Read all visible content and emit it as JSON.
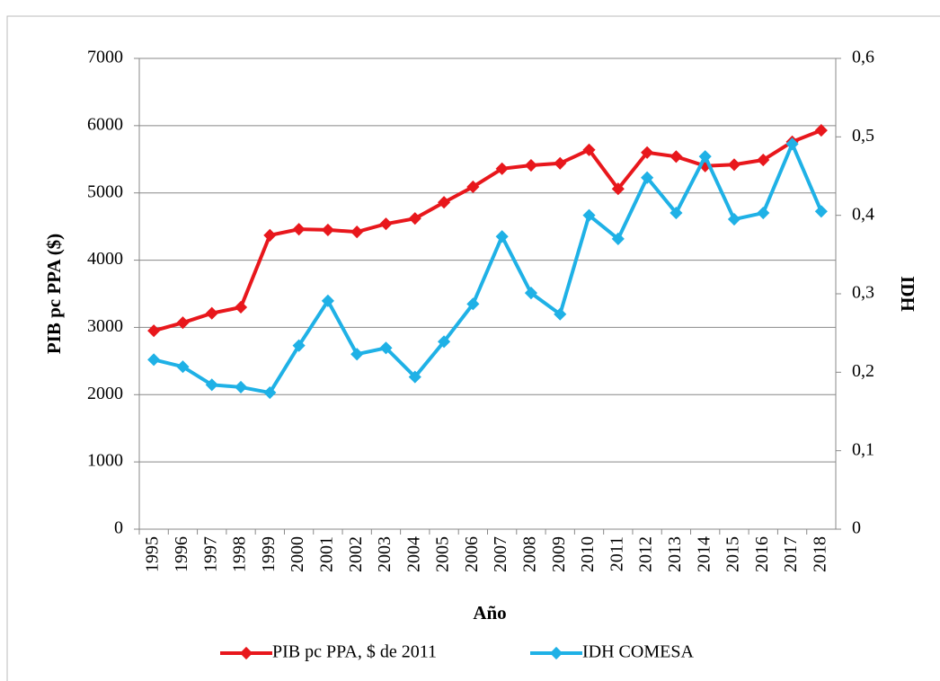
{
  "chart_data": {
    "type": "line",
    "x_label": "Año",
    "y_label": "PIB pc PPA ($)",
    "y2_label": "IDH",
    "categories": [
      "1995",
      "1996",
      "1997",
      "1998",
      "1999",
      "2000",
      "2001",
      "2002",
      "2003",
      "2004",
      "2005",
      "2006",
      "2007",
      "2008",
      "2009",
      "2010",
      "2011",
      "2012",
      "2013",
      "2014",
      "2015",
      "2016",
      "2017",
      "2018"
    ],
    "series": [
      {
        "name": "PIB pc PPA, $ de 2011",
        "color": "#e8171c",
        "axis": "y",
        "values": [
          2950,
          3070,
          3210,
          3300,
          4370,
          4460,
          4450,
          4420,
          4540,
          4620,
          4860,
          5090,
          5360,
          5410,
          5440,
          5640,
          5060,
          5600,
          5540,
          5400,
          5420,
          5490,
          5760,
          5930
        ]
      },
      {
        "name": "IDH COMESA",
        "color": "#1fb1e6",
        "axis": "y2",
        "values": [
          0.216,
          0.207,
          0.184,
          0.181,
          0.174,
          0.234,
          0.291,
          0.223,
          0.231,
          0.194,
          0.239,
          0.287,
          0.373,
          0.301,
          0.274,
          0.4,
          0.37,
          0.448,
          0.403,
          0.475,
          0.395,
          0.403,
          0.491,
          0.405
        ]
      }
    ],
    "ylim": [
      0,
      7000
    ],
    "yticks": [
      0,
      1000,
      2000,
      3000,
      4000,
      5000,
      6000,
      7000
    ],
    "y2lim": [
      0,
      0.6
    ],
    "y2ticks": [
      0,
      {
        "value": 0.1,
        "label": "0,1"
      },
      {
        "value": 0.2,
        "label": "0,2"
      },
      {
        "value": 0.3,
        "label": "0,3"
      },
      {
        "value": 0.4,
        "label": "0,4"
      },
      {
        "value": 0.5,
        "label": "0,5"
      },
      {
        "value": 0.6,
        "label": "0,6"
      }
    ],
    "grid": true,
    "legend": "bottom"
  }
}
